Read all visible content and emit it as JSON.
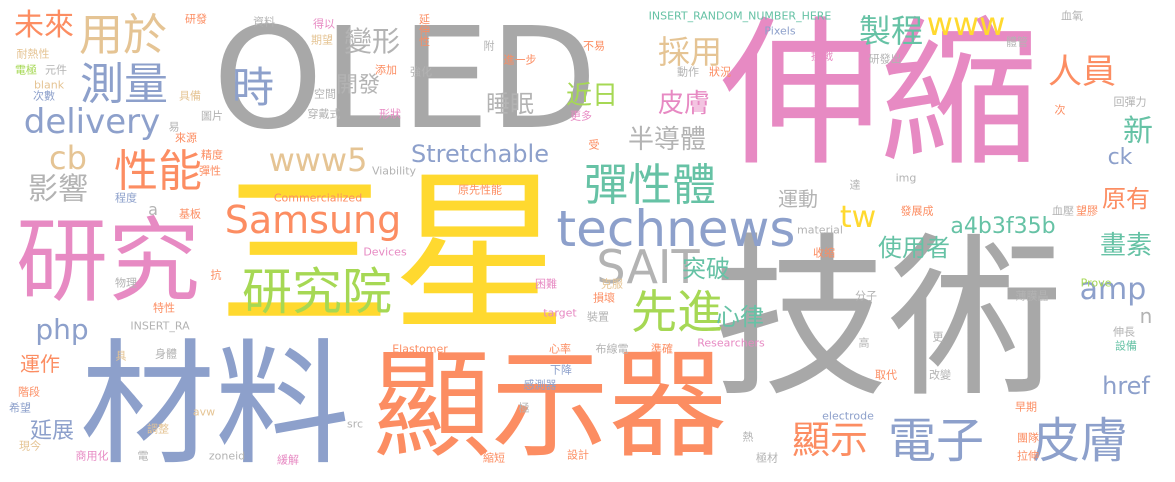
{
  "cloud": {
    "words": [
      {
        "text": "OLED",
        "color": "#a8a8a8"
      },
      {
        "text": "伸縮",
        "color": "#e78ac3"
      },
      {
        "text": "三星",
        "color": "#ffd92f"
      },
      {
        "text": "技術",
        "color": "#a8a8a8"
      },
      {
        "text": "材料",
        "color": "#8da0cb"
      },
      {
        "text": "顯示器",
        "color": "#fc8d62"
      },
      {
        "text": "研究",
        "color": "#e78ac3"
      },
      {
        "text": "研究院",
        "color": "#a6d854"
      },
      {
        "text": "technews",
        "color": "#8da0cb"
      },
      {
        "text": "Samsung",
        "color": "#fc8d62"
      },
      {
        "text": "SAIT",
        "color": "#b3b3b3"
      },
      {
        "text": "彈性體",
        "color": "#66c2a5"
      },
      {
        "text": "測量",
        "color": "#8da0cb"
      },
      {
        "text": "性能",
        "color": "#fc8d62"
      },
      {
        "text": "用於",
        "color": "#e5c494"
      },
      {
        "text": "delivery",
        "color": "#8da0cb"
      },
      {
        "text": "www5",
        "color": "#e5c494"
      },
      {
        "text": "時",
        "color": "#8da0cb"
      },
      {
        "text": "電子",
        "color": "#8da0cb"
      },
      {
        "text": "皮膚",
        "color": "#8da0cb"
      },
      {
        "text": "顯示",
        "color": "#fc8d62"
      },
      {
        "text": "先進",
        "color": "#a6d854"
      },
      {
        "text": "Stretchable",
        "color": "#8da0cb"
      },
      {
        "text": "www",
        "color": "#ffd92f"
      },
      {
        "text": "人員",
        "color": "#fc8d62"
      },
      {
        "text": "製程",
        "color": "#66c2a5"
      },
      {
        "text": "採用",
        "color": "#e5c494"
      },
      {
        "text": "變形",
        "color": "#b3b3b3"
      },
      {
        "text": "影響",
        "color": "#b3b3b3"
      },
      {
        "text": "未來",
        "color": "#fc8d62"
      },
      {
        "text": "cb",
        "color": "#e5c494"
      },
      {
        "text": "php",
        "color": "#8da0cb"
      },
      {
        "text": "amp",
        "color": "#8da0cb"
      },
      {
        "text": "tw",
        "color": "#ffd92f"
      },
      {
        "text": "a4b3f35b",
        "color": "#66c2a5"
      },
      {
        "text": "半導體",
        "color": "#b3b3b3"
      },
      {
        "text": "新",
        "color": "#66c2a5"
      },
      {
        "text": "畫素",
        "color": "#66c2a5"
      },
      {
        "text": "皮膚",
        "color": "#e78ac3"
      },
      {
        "text": "睡眠",
        "color": "#b3b3b3"
      },
      {
        "text": "開發",
        "color": "#b3b3b3"
      },
      {
        "text": "近日",
        "color": "#a6d854"
      },
      {
        "text": "心律",
        "color": "#66c2a5"
      },
      {
        "text": "突破",
        "color": "#66c2a5"
      },
      {
        "text": "使用者",
        "color": "#66c2a5"
      },
      {
        "text": "運動",
        "color": "#b3b3b3"
      },
      {
        "text": "原有",
        "color": "#fc8d62"
      },
      {
        "text": "href",
        "color": "#8da0cb"
      },
      {
        "text": "ck",
        "color": "#8da0cb"
      },
      {
        "text": "運作",
        "color": "#fc8d62"
      },
      {
        "text": "延展",
        "color": "#8da0cb"
      },
      {
        "text": "a",
        "color": "#b3b3b3"
      },
      {
        "text": "n",
        "color": "#b3b3b3"
      },
      {
        "text": "INSERT_RANDOM_NUMBER_HERE",
        "color": "#66c2a5"
      },
      {
        "text": "研發",
        "color": "#fc8d62"
      },
      {
        "text": "延伸性",
        "color": "#fc8d62"
      },
      {
        "text": "得以",
        "color": "#e78ac3"
      },
      {
        "text": "期望",
        "color": "#e5c494"
      },
      {
        "text": "資料",
        "color": "#b3b3b3"
      },
      {
        "text": "附",
        "color": "#b3b3b3"
      },
      {
        "text": "進一步",
        "color": "#fc8d62"
      },
      {
        "text": "不易",
        "color": "#fc8d62"
      },
      {
        "text": "Pixels",
        "color": "#8da0cb"
      },
      {
        "text": "挑戰",
        "color": "#e78ac3"
      },
      {
        "text": "血氧",
        "color": "#b3b3b3"
      },
      {
        "text": "體管",
        "color": "#b3b3b3"
      },
      {
        "text": "耐熱性",
        "color": "#e5c494"
      },
      {
        "text": "電極",
        "color": "#a6d854"
      },
      {
        "text": "元件",
        "color": "#b3b3b3"
      },
      {
        "text": "blank",
        "color": "#e5c494"
      },
      {
        "text": "次數",
        "color": "#8da0cb"
      },
      {
        "text": "添加",
        "color": "#fc8d62"
      },
      {
        "text": "強化",
        "color": "#b3b3b3"
      },
      {
        "text": "動作",
        "color": "#b3b3b3"
      },
      {
        "text": "狀況",
        "color": "#fc8d62"
      },
      {
        "text": "研發出",
        "color": "#b3b3b3"
      },
      {
        "text": "回彈力",
        "color": "#b3b3b3"
      },
      {
        "text": "具備",
        "color": "#e5c494"
      },
      {
        "text": "圖片",
        "color": "#b3b3b3"
      },
      {
        "text": "空間",
        "color": "#b3b3b3"
      },
      {
        "text": "穿戴式",
        "color": "#b3b3b3"
      },
      {
        "text": "形狀",
        "color": "#e78ac3"
      },
      {
        "text": "更多",
        "color": "#e78ac3"
      },
      {
        "text": "易",
        "color": "#b3b3b3"
      },
      {
        "text": "來源",
        "color": "#fc8d62"
      },
      {
        "text": "精度",
        "color": "#fc8d62"
      },
      {
        "text": "彈性",
        "color": "#fc8d62"
      },
      {
        "text": "程度",
        "color": "#8da0cb"
      },
      {
        "text": "Viability",
        "color": "#b3b3b3"
      },
      {
        "text": "受",
        "color": "#fc8d62"
      },
      {
        "text": "次",
        "color": "#fc8d62"
      },
      {
        "text": "達",
        "color": "#b3b3b3"
      },
      {
        "text": "img",
        "color": "#b3b3b3"
      },
      {
        "text": "發展成",
        "color": "#fc8d62"
      },
      {
        "text": "血壓",
        "color": "#b3b3b3"
      },
      {
        "text": "望膠",
        "color": "#fc8d62"
      },
      {
        "text": "Commercialized",
        "color": "#fc8d62"
      },
      {
        "text": "原先性能",
        "color": "#fc8d62"
      },
      {
        "text": "基板",
        "color": "#fc8d62"
      },
      {
        "text": "material",
        "color": "#b3b3b3"
      },
      {
        "text": "收縮",
        "color": "#fc8d62"
      },
      {
        "text": "Devices",
        "color": "#e78ac3"
      },
      {
        "text": "抗",
        "color": "#fc8d62"
      },
      {
        "text": "物理",
        "color": "#b3b3b3"
      },
      {
        "text": "困難",
        "color": "#e78ac3"
      },
      {
        "text": "克服",
        "color": "#e5c494"
      },
      {
        "text": "分子",
        "color": "#b3b3b3"
      },
      {
        "text": "薄膜晶",
        "color": "#b3b3b3"
      },
      {
        "text": "Prove",
        "color": "#a6d854"
      },
      {
        "text": "特性",
        "color": "#fc8d62"
      },
      {
        "text": "損壞",
        "color": "#fc8d62"
      },
      {
        "text": "target",
        "color": "#e78ac3"
      },
      {
        "text": "INSERT_RA",
        "color": "#b3b3b3"
      },
      {
        "text": "裝置",
        "color": "#b3b3b3"
      },
      {
        "text": "身體",
        "color": "#b3b3b3"
      },
      {
        "text": "具",
        "color": "#e5c494"
      },
      {
        "text": "Elastomer",
        "color": "#fc8d62"
      },
      {
        "text": "心率",
        "color": "#fc8d62"
      },
      {
        "text": "布線電",
        "color": "#b3b3b3"
      },
      {
        "text": "準確",
        "color": "#fc8d62"
      },
      {
        "text": "Researchers",
        "color": "#e78ac3"
      },
      {
        "text": "高",
        "color": "#b3b3b3"
      },
      {
        "text": "更",
        "color": "#b3b3b3"
      },
      {
        "text": "伸長",
        "color": "#b3b3b3"
      },
      {
        "text": "設備",
        "color": "#66c2a5"
      },
      {
        "text": "感測器",
        "color": "#8da0cb"
      },
      {
        "text": "下降",
        "color": "#8da0cb"
      },
      {
        "text": "取代",
        "color": "#fc8d62"
      },
      {
        "text": "改變",
        "color": "#b3b3b3"
      },
      {
        "text": "階段",
        "color": "#fc8d62"
      },
      {
        "text": "希望",
        "color": "#8da0cb"
      },
      {
        "text": "avw",
        "color": "#e5c494"
      },
      {
        "text": "src",
        "color": "#b3b3b3"
      },
      {
        "text": "極",
        "color": "#b3b3b3"
      },
      {
        "text": "electrode",
        "color": "#8da0cb"
      },
      {
        "text": "早期",
        "color": "#fc8d62"
      },
      {
        "text": "調整",
        "color": "#e5c494"
      },
      {
        "text": "熱",
        "color": "#b3b3b3"
      },
      {
        "text": "團隊",
        "color": "#fc8d62"
      },
      {
        "text": "現今",
        "color": "#e5c494"
      },
      {
        "text": "商用化",
        "color": "#e78ac3"
      },
      {
        "text": "電",
        "color": "#b3b3b3"
      },
      {
        "text": "zoneid",
        "color": "#b3b3b3"
      },
      {
        "text": "緩解",
        "color": "#e78ac3"
      },
      {
        "text": "縮短",
        "color": "#fc8d62"
      },
      {
        "text": "設計",
        "color": "#fc8d62"
      },
      {
        "text": "極材",
        "color": "#b3b3b3"
      },
      {
        "text": "拉伸",
        "color": "#fc8d62"
      }
    ]
  }
}
